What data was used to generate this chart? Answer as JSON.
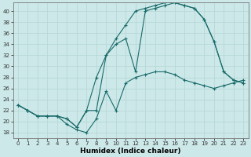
{
  "xlabel": "Humidex (Indice chaleur)",
  "bg_color": "#cce8e8",
  "line_color": "#1a6b6b",
  "grid_color": "#b8d8d8",
  "xlim": [
    -0.5,
    23.5
  ],
  "ylim": [
    17,
    41.5
  ],
  "yticks": [
    18,
    20,
    22,
    24,
    26,
    28,
    30,
    32,
    34,
    36,
    38,
    40
  ],
  "xticks": [
    0,
    1,
    2,
    3,
    4,
    5,
    6,
    7,
    8,
    9,
    10,
    11,
    12,
    13,
    14,
    15,
    16,
    17,
    18,
    19,
    20,
    21,
    22,
    23
  ],
  "curve1_x": [
    0,
    1,
    2,
    3,
    4,
    5,
    6,
    7,
    8,
    9,
    10,
    11,
    12,
    13,
    14,
    15,
    16,
    17,
    18,
    19,
    20,
    21,
    22,
    23
  ],
  "curve1_y": [
    23.0,
    22.0,
    21.0,
    21.0,
    21.0,
    19.5,
    18.5,
    18.0,
    20.5,
    25.5,
    22.0,
    27.0,
    28.0,
    28.5,
    29.0,
    29.0,
    28.5,
    27.5,
    27.0,
    26.5,
    26.0,
    26.5,
    27.0,
    27.5
  ],
  "curve2_x": [
    0,
    1,
    2,
    3,
    4,
    5,
    6,
    7,
    8,
    9,
    10,
    11,
    12,
    13,
    14,
    15,
    16,
    17,
    18,
    19,
    20,
    21,
    22,
    23
  ],
  "curve2_y": [
    23.0,
    22.0,
    21.0,
    21.0,
    21.0,
    20.5,
    19.0,
    22.0,
    28.0,
    32.0,
    35.0,
    37.5,
    40.0,
    40.5,
    41.0,
    41.5,
    41.5,
    41.0,
    40.5,
    38.5,
    34.5,
    29.0,
    27.5,
    27.0
  ],
  "curve3_x": [
    0,
    1,
    2,
    3,
    4,
    5,
    6,
    7,
    8,
    9,
    10,
    11,
    12,
    13,
    14,
    15,
    16,
    17,
    18,
    19,
    20,
    21,
    22,
    23
  ],
  "curve3_y": [
    23.0,
    22.0,
    21.0,
    21.0,
    21.0,
    20.5,
    19.0,
    22.0,
    22.0,
    32.0,
    34.0,
    35.0,
    29.0,
    40.0,
    40.5,
    41.0,
    41.5,
    41.0,
    40.5,
    38.5,
    34.5,
    29.0,
    27.5,
    27.0
  ]
}
